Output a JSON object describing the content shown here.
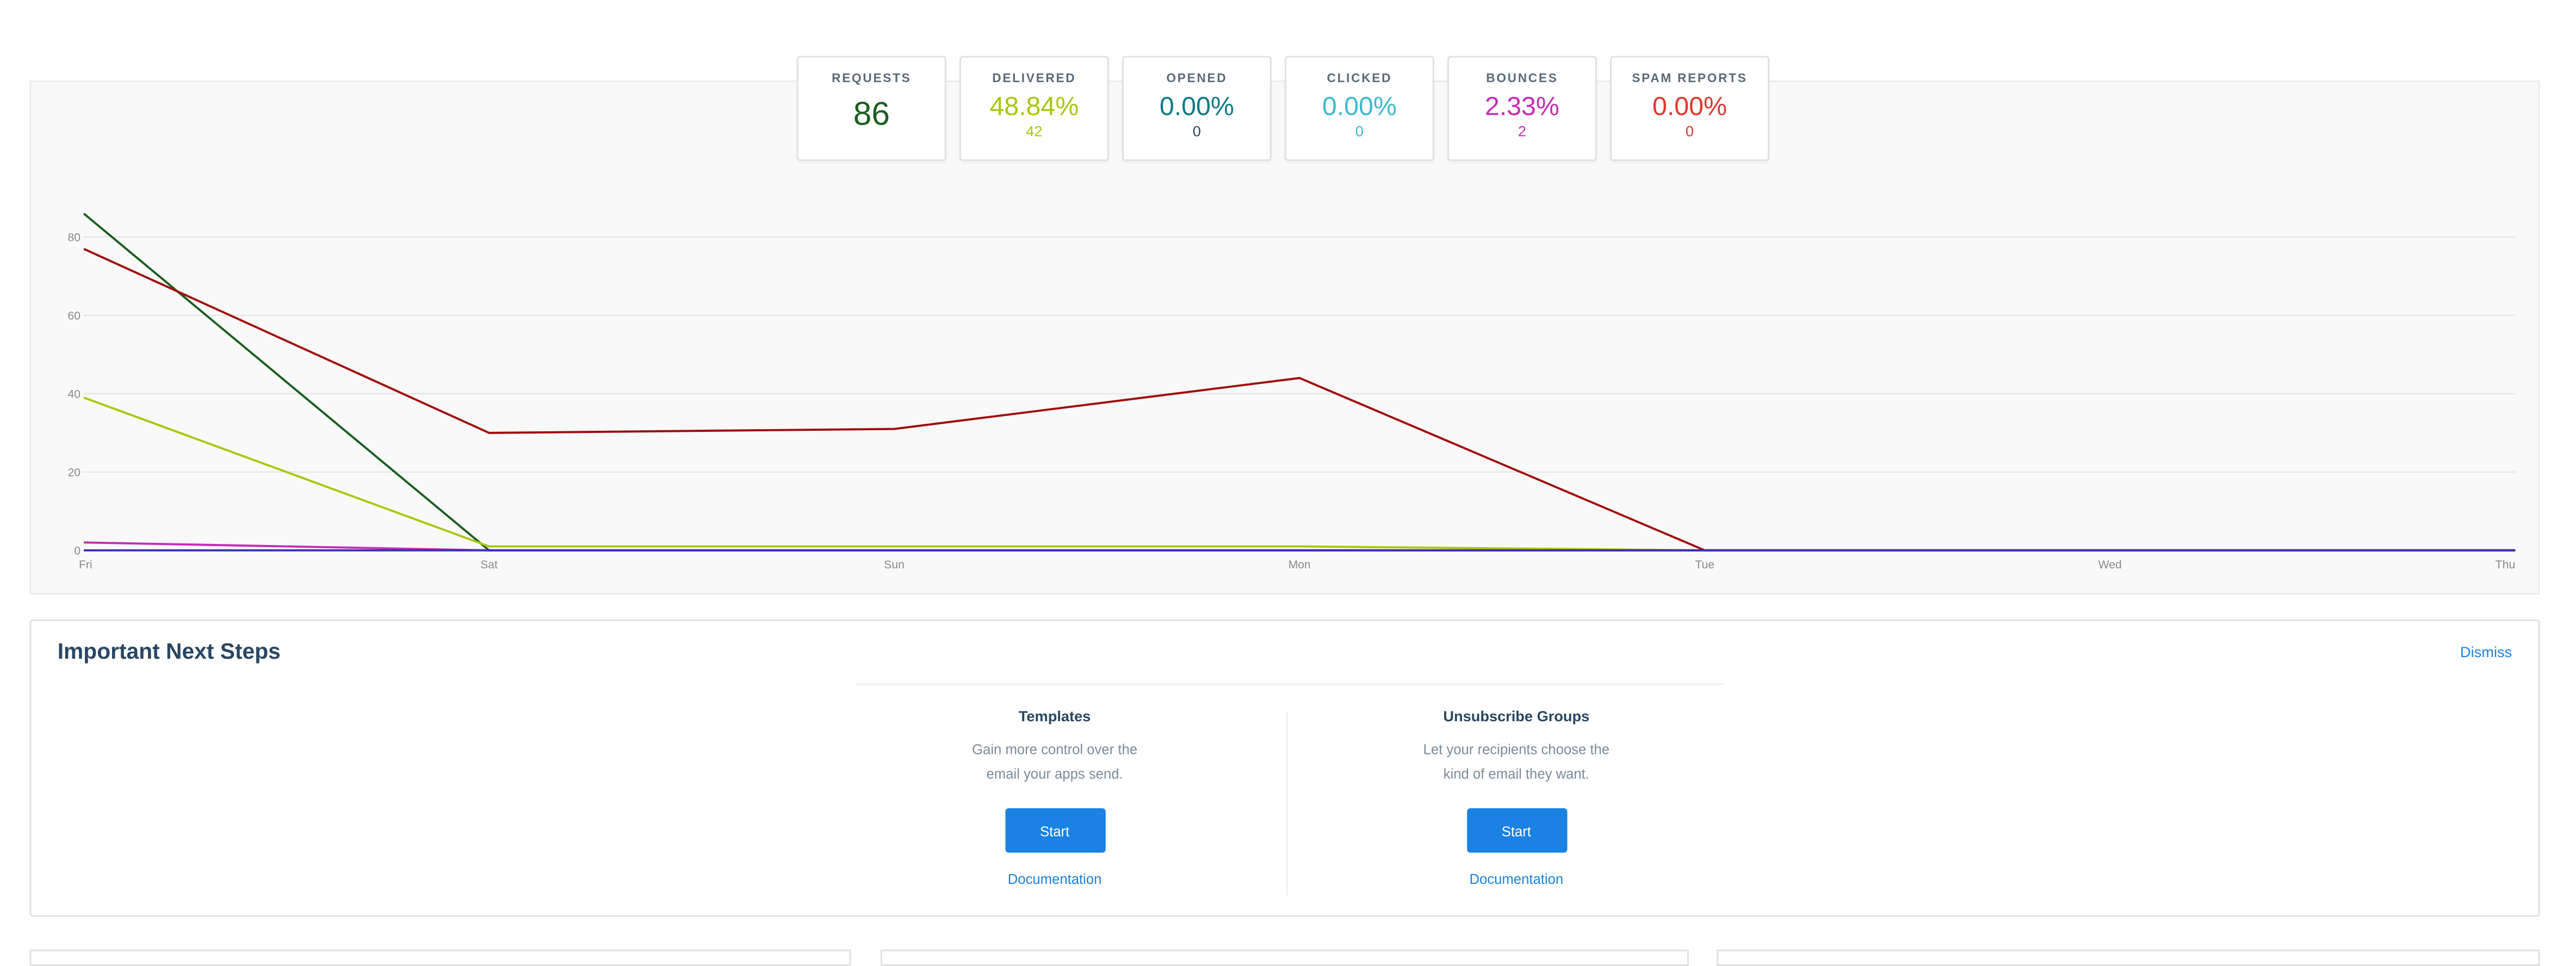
{
  "stats": [
    {
      "label": "REQUESTS",
      "value": "86",
      "sub": "",
      "color": "#1b5e20"
    },
    {
      "label": "DELIVERED",
      "value": "48.84%",
      "sub": "42",
      "color": "#a8c70f"
    },
    {
      "label": "OPENED",
      "value": "0.00%",
      "sub": "0",
      "color": "#0e7a86"
    },
    {
      "label": "CLICKED",
      "value": "0.00%",
      "sub": "0",
      "color": "#3eb9cf"
    },
    {
      "label": "BOUNCES",
      "value": "2.33%",
      "sub": "2",
      "color": "#c62cb5"
    },
    {
      "label": "SPAM REPORTS",
      "value": "0.00%",
      "sub": "0",
      "color": "#e0372f"
    }
  ],
  "chart_data": {
    "type": "line",
    "categories": [
      "Fri",
      "Sat",
      "Sun",
      "Mon",
      "Tue",
      "Wed",
      "Thu"
    ],
    "yticks": [
      0,
      20,
      40,
      60,
      80
    ],
    "ylim": [
      0,
      86
    ],
    "grid": true,
    "series": [
      {
        "color": "#1b5e20",
        "values": [
          86,
          0,
          0,
          0,
          0,
          0,
          0
        ]
      },
      {
        "color": "#a8c70f",
        "values": [
          39,
          1,
          1,
          1,
          0,
          0,
          0
        ]
      },
      {
        "color": "#a00d0d",
        "values": [
          77,
          30,
          31,
          44,
          0,
          0,
          0
        ]
      },
      {
        "color": "#c62cb5",
        "values": [
          2,
          0,
          0,
          0,
          0,
          0,
          0
        ]
      },
      {
        "color": "#3b2fb5",
        "values": [
          0,
          0,
          0,
          0,
          0,
          0,
          0
        ]
      }
    ]
  },
  "next_steps": {
    "title": "Important Next Steps",
    "dismiss": "Dismiss",
    "items": [
      {
        "title": "Templates",
        "desc": "Gain more control over the email your apps send.",
        "button": "Start",
        "link": "Documentation"
      },
      {
        "title": "Unsubscribe Groups",
        "desc": "Let your recipients choose the kind of email they want.",
        "button": "Start",
        "link": "Documentation"
      }
    ]
  },
  "colors": {
    "accent": "#1a82e2",
    "heading": "#294661"
  }
}
